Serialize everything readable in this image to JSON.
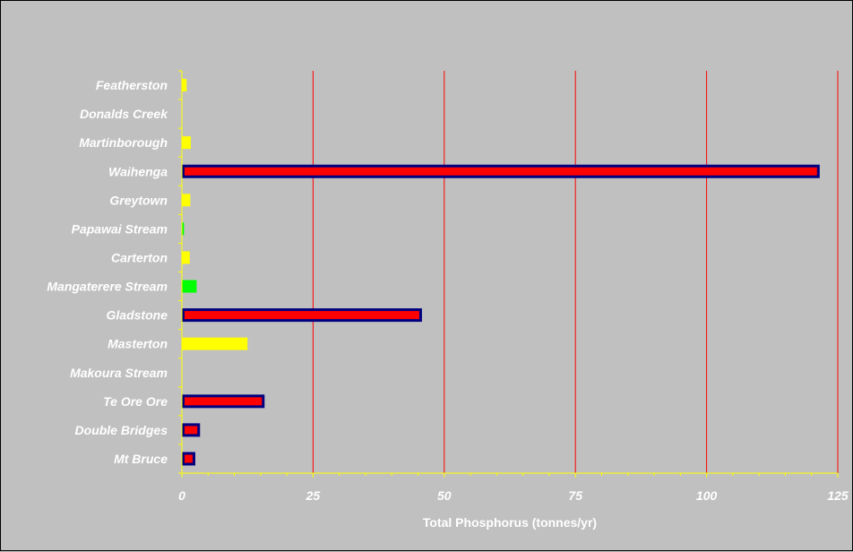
{
  "chart_data": {
    "type": "bar",
    "orientation": "horizontal",
    "title": "",
    "xlabel": "Total Phosphorus (tonnes/yr)",
    "ylabel": "",
    "xlim": [
      0,
      125
    ],
    "x_ticks": [
      0,
      25,
      50,
      75,
      100,
      125
    ],
    "grid": "vertical major gridlines",
    "legend": "none",
    "colors": {
      "background": "#c0c0c0",
      "gridline": "#ff0000",
      "axis": "#ffff00",
      "point_source": "#ff0000",
      "point_source_border": "#000080",
      "town": "#ffff00",
      "stream": "#00ff00"
    },
    "categories": [
      "Featherston",
      "Donalds Creek",
      "Martinborough",
      "Waihenga",
      "Greytown",
      "Papawai Stream",
      "Carterton",
      "Mangaterere Stream",
      "Gladstone",
      "Masterton",
      "Makoura Stream",
      "Te Ore Ore",
      "Double Bridges",
      "Mt Bruce"
    ],
    "values": [
      0.9,
      0,
      1.7,
      121.3,
      1.6,
      0.4,
      1.5,
      2.8,
      45.5,
      12.5,
      0,
      15.5,
      3.2,
      2.3
    ],
    "bar_styles": [
      "yellow",
      "none",
      "yellow",
      "red",
      "yellow",
      "green",
      "yellow",
      "green",
      "red",
      "yellow",
      "none",
      "red",
      "red",
      "red"
    ]
  }
}
